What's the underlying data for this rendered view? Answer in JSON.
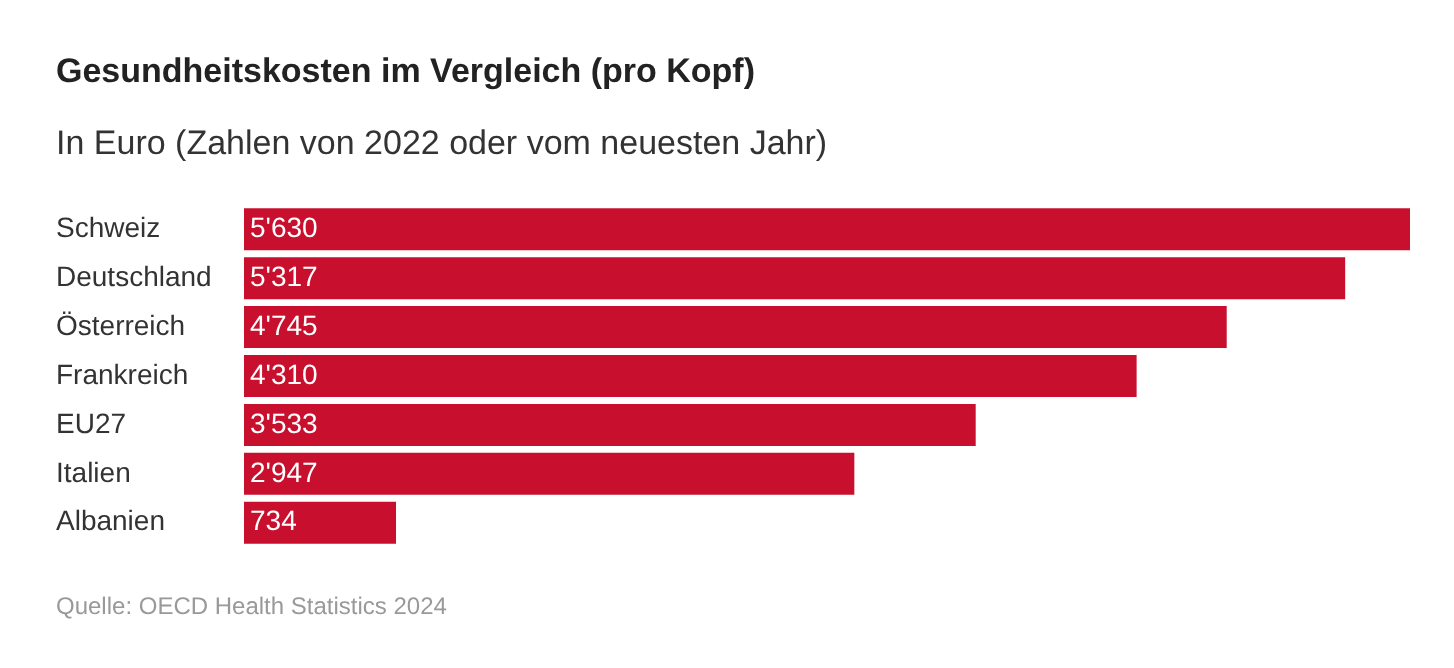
{
  "chart_data": {
    "type": "bar",
    "orientation": "horizontal",
    "title": "Gesundheitskosten im Vergleich (pro Kopf)",
    "subtitle": "In Euro (Zahlen von 2022 oder vom neuesten Jahr)",
    "categories": [
      "Schweiz",
      "Deutschland",
      "Österreich",
      "Frankreich",
      "EU27",
      "Italien",
      "Albanien"
    ],
    "values": [
      5630,
      5317,
      4745,
      4310,
      3533,
      2947,
      734
    ],
    "value_labels": [
      "5'630",
      "5'317",
      "4'745",
      "4'310",
      "3'533",
      "2'947",
      "734"
    ],
    "color": "#c8102e",
    "legend": false,
    "annotations": [
      "Quelle: OECD Health Statistics 2024"
    ]
  }
}
